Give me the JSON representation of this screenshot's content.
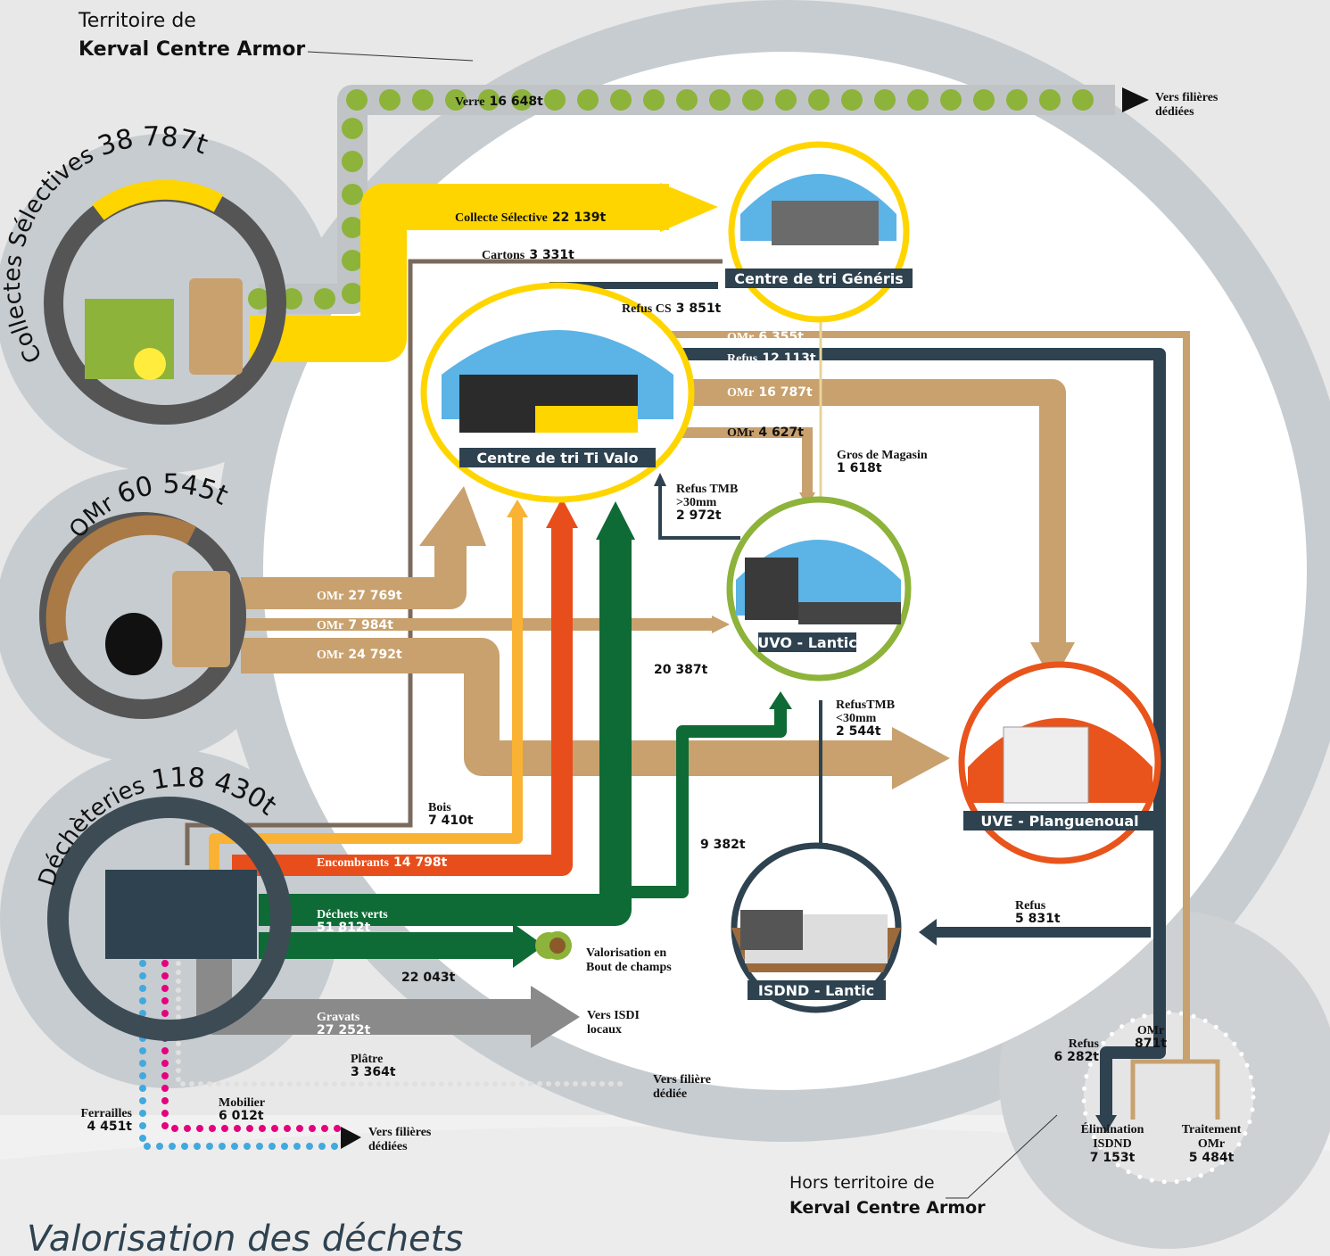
{
  "territory": {
    "prefix": "Territoire de",
    "name": "Kerval Centre Armor"
  },
  "outside": {
    "prefix": "Hors territoire de",
    "name": "Kerval Centre Armor"
  },
  "sources": [
    {
      "label": "Collectes Sélectives",
      "total": "38 787t"
    },
    {
      "label": "OMr",
      "total": "60 545t"
    },
    {
      "label": "Déchèteries",
      "total": "118 430t"
    }
  ],
  "facilities": [
    "Centre de tri Généris",
    "Centre de tri Ti Valo",
    "UVO - Lantic",
    "UVE - Planguenoual",
    "ISDND - Lantic"
  ],
  "flows": [
    {
      "label": [
        "Verre"
      ],
      "amount": "16 648t"
    },
    {
      "label": [
        "Collecte Sélective"
      ],
      "amount": "22 139t"
    },
    {
      "label": [
        "Cartons"
      ],
      "amount": "3 331t"
    },
    {
      "label": [
        "Refus CS"
      ],
      "amount": "3 851t"
    },
    {
      "label": [
        "OMr"
      ],
      "amount": "6 355t"
    },
    {
      "label": [
        "Refus"
      ],
      "amount": "12 113t"
    },
    {
      "label": [
        "OMr"
      ],
      "amount": "16 787t"
    },
    {
      "label": [
        "OMr"
      ],
      "amount": "4 627t"
    },
    {
      "label": [
        "Gros de Magasin"
      ],
      "amount": "1 618t"
    },
    {
      "label": [
        "Refus TMB",
        ">30mm"
      ],
      "amount": "2 972t"
    },
    {
      "label": [
        "OMr"
      ],
      "amount": "27 769t"
    },
    {
      "label": [
        "OMr"
      ],
      "amount": "7 984t"
    },
    {
      "label": [
        "OMr"
      ],
      "amount": "24 792t"
    },
    {
      "amount": "20 387t"
    },
    {
      "label": [
        "RefusTMB",
        "<30mm"
      ],
      "amount": "2 544t"
    },
    {
      "label": [
        "Bois"
      ],
      "amount": "7 410t"
    },
    {
      "label": [
        "Encombrants"
      ],
      "amount": "14 798t"
    },
    {
      "amount": "9 382t"
    },
    {
      "label": [
        "Déchets verts"
      ],
      "amount": "51 812t"
    },
    {
      "amount": "22 043t"
    },
    {
      "label": [
        "Refus"
      ],
      "amount": "5 831t"
    },
    {
      "label": [
        "Gravats"
      ],
      "amount": "27 252t"
    },
    {
      "label": [
        "Plâtre"
      ],
      "amount": "3 364t"
    },
    {
      "label": [
        "Mobilier"
      ],
      "amount": "6 012t"
    },
    {
      "label": [
        "Ferrailles"
      ],
      "amount": "4 451t"
    },
    {
      "label": [
        "Refus"
      ],
      "amount": "6 282t"
    },
    {
      "label": [
        "OMr"
      ],
      "amount": "871t"
    }
  ],
  "destinations": [
    {
      "lines": [
        "Vers filières",
        "dédiées"
      ]
    },
    {
      "lines": [
        "Valorisation en",
        "Bout de champs"
      ]
    },
    {
      "lines": [
        "Vers ISDI",
        "locaux"
      ]
    },
    {
      "lines": [
        "Vers filière",
        "dédiée"
      ]
    },
    {
      "lines": [
        "Vers filières",
        "dédiées"
      ]
    },
    {
      "lines": [
        "Élimination",
        "ISDND"
      ],
      "amount": "7 153t"
    },
    {
      "lines": [
        "Traitement",
        "OMr"
      ],
      "amount": "5 484t"
    }
  ],
  "footer_title": "Valorisation des déchets"
}
